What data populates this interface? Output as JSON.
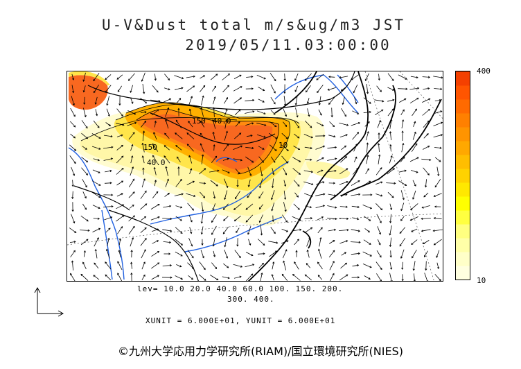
{
  "title": {
    "line1": "U-V&Dust total m/s&ug/m3 JST",
    "line2": "2019/05/11.03:00:00"
  },
  "colorbar": {
    "max_label": "400",
    "min_label": "10",
    "colors": [
      "#ffffe0",
      "#ffffc8",
      "#ffffa8",
      "#ffff80",
      "#ffff40",
      "#ffff00",
      "#ffe800",
      "#ffd200",
      "#ffbe00",
      "#ffa800",
      "#ff9400",
      "#ff8000",
      "#ff6a00",
      "#ff5500",
      "#f44000"
    ]
  },
  "levels": {
    "line1": "lev= 10.0 20.0 40.0 60.0 100. 150. 200.",
    "line2": "300. 400."
  },
  "contour_labels": [
    "150",
    "40.0",
    "150",
    "40.0",
    "10"
  ],
  "units": "XUNIT = 6.000E+01, YUNIT = 6.000E+01",
  "copyright": "©九州大学応用力学研究所(RIAM)/国立環境研究所(NIES)"
}
